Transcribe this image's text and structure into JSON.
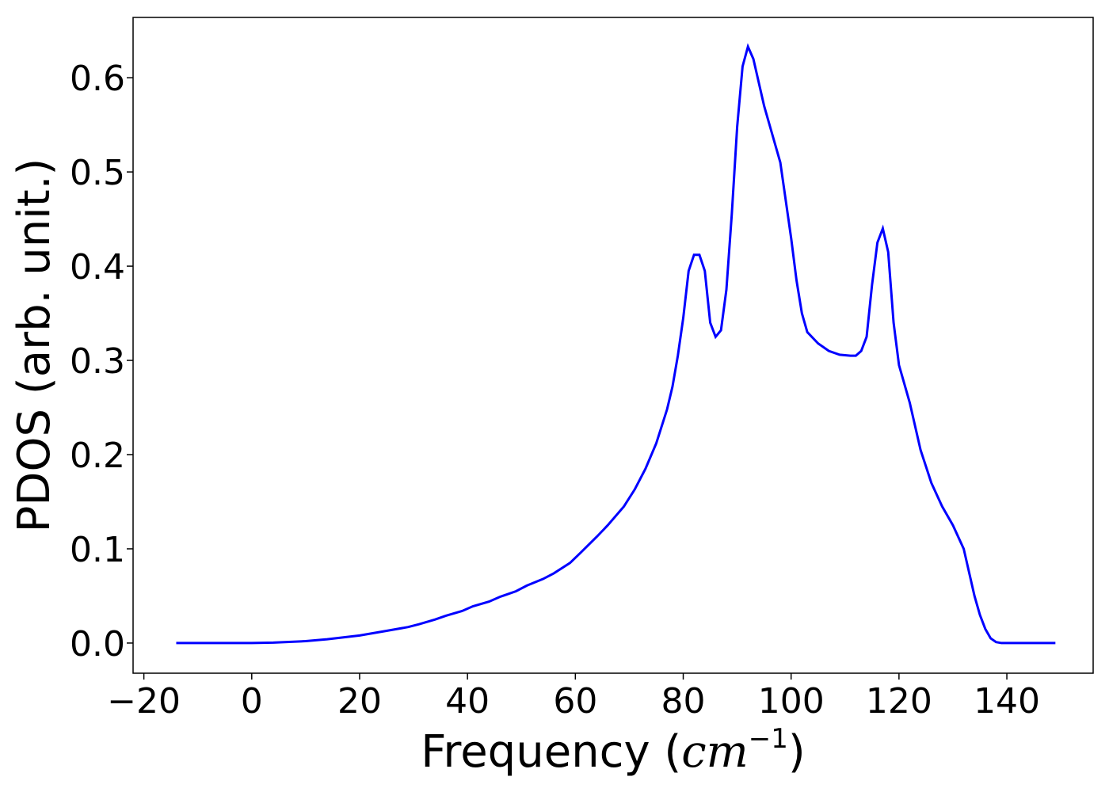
{
  "chart_data": {
    "type": "line",
    "xlabel": "Frequency (",
    "xlabel_math": "cm",
    "xlabel_sup": "−1",
    "xlabel_close": ")",
    "ylabel": "PDOS (arb. unit.)",
    "xlim": [
      -22,
      156
    ],
    "ylim": [
      -0.032,
      0.664
    ],
    "xticks": [
      -20,
      0,
      20,
      40,
      60,
      80,
      100,
      120,
      140
    ],
    "xtick_labels": [
      "−20",
      "0",
      "20",
      "40",
      "60",
      "80",
      "100",
      "120",
      "140"
    ],
    "yticks": [
      0.0,
      0.1,
      0.2,
      0.3,
      0.4,
      0.5,
      0.6
    ],
    "ytick_labels": [
      "0.0",
      "0.1",
      "0.2",
      "0.3",
      "0.4",
      "0.5",
      "0.6"
    ],
    "grid": false,
    "line_color": "#0000ff",
    "series": [
      {
        "x": [
          -14,
          0,
          4,
          10,
          14,
          20,
          25,
          29,
          31,
          34,
          36,
          39,
          41,
          44,
          46,
          49,
          51,
          54,
          56,
          59,
          61,
          64,
          66,
          69,
          71,
          73,
          75,
          77,
          78,
          79,
          80,
          81,
          82,
          83,
          84,
          85,
          86,
          87,
          88,
          89,
          90,
          91,
          92,
          93,
          95,
          96,
          98,
          100,
          101,
          102,
          103,
          105,
          107,
          109,
          111,
          112,
          113,
          114,
          115,
          116,
          117,
          118,
          119,
          120,
          122,
          124,
          126,
          128,
          130,
          132,
          133,
          134,
          135,
          136,
          137,
          138,
          139,
          140,
          149
        ],
        "y": [
          0.0,
          0.0,
          0.0005,
          0.002,
          0.004,
          0.008,
          0.013,
          0.017,
          0.02,
          0.025,
          0.029,
          0.034,
          0.039,
          0.044,
          0.049,
          0.055,
          0.061,
          0.068,
          0.074,
          0.085,
          0.096,
          0.113,
          0.125,
          0.145,
          0.163,
          0.185,
          0.212,
          0.248,
          0.272,
          0.305,
          0.345,
          0.395,
          0.412,
          0.412,
          0.395,
          0.34,
          0.325,
          0.332,
          0.375,
          0.455,
          0.548,
          0.612,
          0.633,
          0.62,
          0.57,
          0.55,
          0.51,
          0.43,
          0.385,
          0.35,
          0.33,
          0.318,
          0.31,
          0.306,
          0.305,
          0.305,
          0.31,
          0.325,
          0.38,
          0.425,
          0.44,
          0.415,
          0.34,
          0.295,
          0.255,
          0.205,
          0.17,
          0.145,
          0.125,
          0.1,
          0.075,
          0.05,
          0.03,
          0.015,
          0.005,
          0.001,
          0.0,
          0.0,
          0.0
        ]
      }
    ]
  }
}
